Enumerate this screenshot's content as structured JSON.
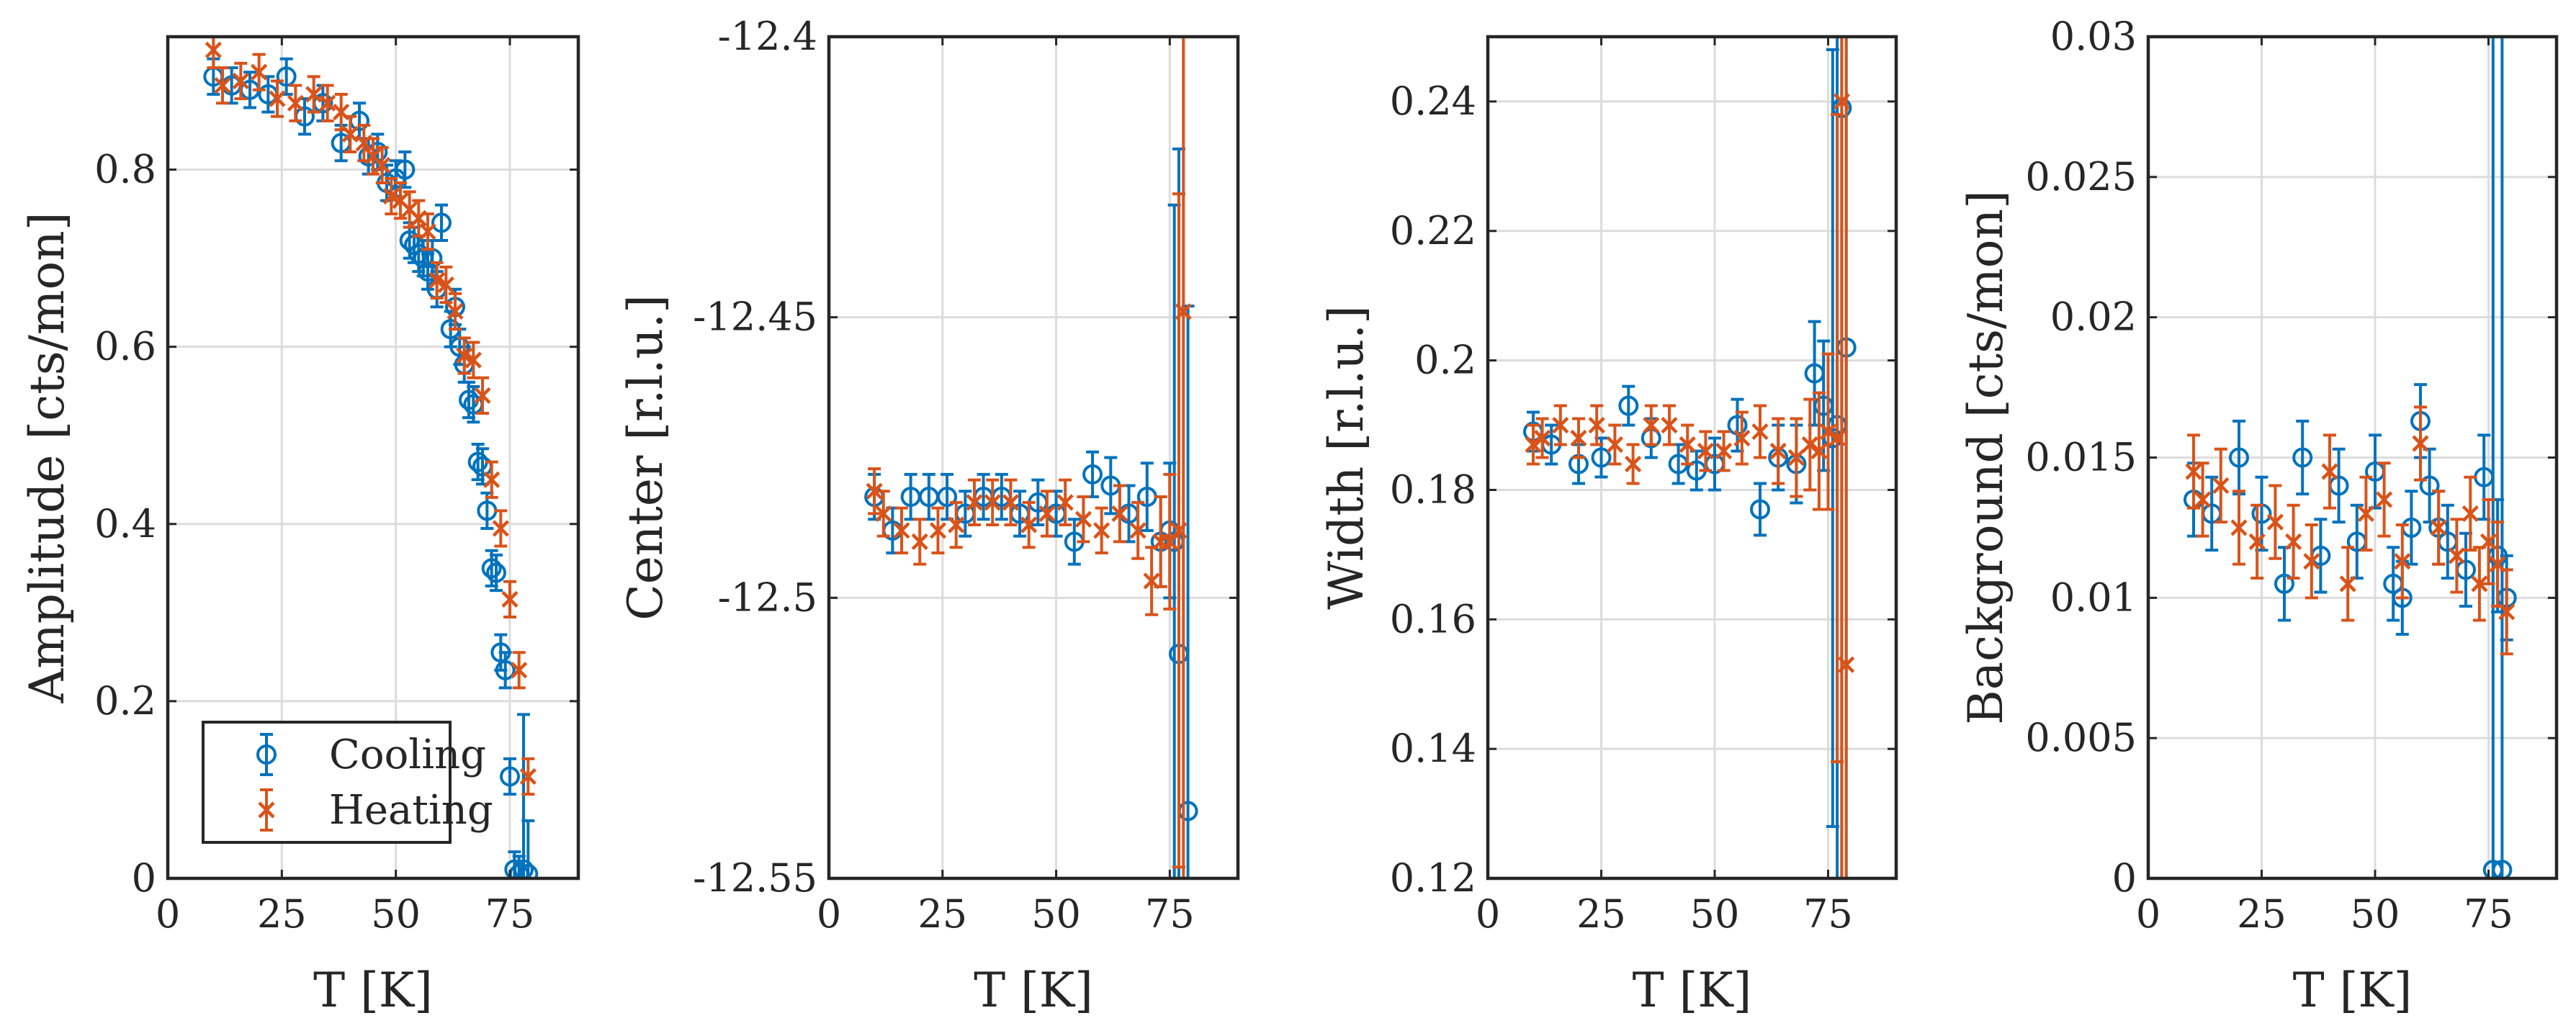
{
  "colors": {
    "cooling": "#0072BD",
    "heating": "#D95319",
    "axis": "#262626",
    "grid": "#dcdcdc"
  },
  "chart_data": [
    {
      "type": "scatter",
      "xlabel": "T [K]",
      "ylabel": "Amplitude [cts/mon]",
      "xlim": [
        0,
        90
      ],
      "ylim": [
        0,
        0.95
      ],
      "xticks": [
        0,
        25,
        50,
        75
      ],
      "xtick_labels": [
        "0",
        "25",
        "50",
        "75"
      ],
      "yticks": [
        0,
        0.2,
        0.4,
        0.6,
        0.8
      ],
      "ytick_labels": [
        "0",
        "0.2",
        "0.4",
        "0.6",
        "0.8"
      ],
      "grid": true,
      "legend": {
        "placement": "bottom-left",
        "entries": [
          "Cooling",
          "Heating"
        ]
      },
      "series": [
        {
          "name": "Cooling",
          "marker": "circle",
          "x": [
            10,
            14,
            18,
            22,
            26,
            30,
            34,
            38,
            42,
            44,
            46,
            48,
            50,
            52,
            53,
            54,
            55,
            56,
            57,
            58,
            59,
            60,
            62,
            63,
            64,
            65,
            66,
            67,
            68,
            69,
            70,
            71,
            72,
            73,
            74,
            75,
            76,
            77,
            78,
            79
          ],
          "y": [
            0.905,
            0.895,
            0.89,
            0.885,
            0.905,
            0.86,
            0.875,
            0.83,
            0.855,
            0.815,
            0.82,
            0.785,
            0.79,
            0.8,
            0.72,
            0.715,
            0.705,
            0.7,
            0.685,
            0.7,
            0.665,
            0.74,
            0.62,
            0.645,
            0.6,
            0.58,
            0.54,
            0.535,
            0.47,
            0.465,
            0.415,
            0.35,
            0.345,
            0.255,
            0.235,
            0.115,
            0.01,
            0.005,
            0.01,
            0.005
          ],
          "err": [
            0.02,
            0.02,
            0.02,
            0.02,
            0.02,
            0.02,
            0.02,
            0.02,
            0.02,
            0.02,
            0.02,
            0.02,
            0.02,
            0.02,
            0.02,
            0.02,
            0.02,
            0.02,
            0.02,
            0.02,
            0.02,
            0.02,
            0.02,
            0.02,
            0.02,
            0.02,
            0.02,
            0.02,
            0.02,
            0.02,
            0.02,
            0.02,
            0.02,
            0.02,
            0.02,
            0.02,
            0.02,
            0.02,
            0.175,
            0.06
          ]
        },
        {
          "name": "Heating",
          "marker": "x",
          "x": [
            10,
            12,
            16,
            20,
            24,
            28,
            32,
            35,
            38,
            40,
            43,
            45,
            47,
            49,
            51,
            53,
            55,
            57,
            59,
            61,
            63,
            65,
            67,
            69,
            71,
            73,
            75,
            77,
            79
          ],
          "y": [
            0.935,
            0.895,
            0.9,
            0.91,
            0.88,
            0.875,
            0.885,
            0.875,
            0.865,
            0.84,
            0.83,
            0.815,
            0.805,
            0.77,
            0.765,
            0.755,
            0.745,
            0.73,
            0.675,
            0.67,
            0.64,
            0.59,
            0.585,
            0.545,
            0.45,
            0.395,
            0.315,
            0.235,
            0.115
          ],
          "err": [
            0.02,
            0.02,
            0.02,
            0.02,
            0.02,
            0.02,
            0.02,
            0.02,
            0.02,
            0.02,
            0.02,
            0.02,
            0.02,
            0.02,
            0.02,
            0.02,
            0.02,
            0.02,
            0.02,
            0.02,
            0.02,
            0.02,
            0.02,
            0.02,
            0.02,
            0.02,
            0.02,
            0.02,
            0.02
          ]
        }
      ]
    },
    {
      "type": "scatter",
      "xlabel": "T [K]",
      "ylabel": "Center [r.l.u.]",
      "xlim": [
        0,
        90
      ],
      "ylim": [
        -12.55,
        -12.4
      ],
      "xticks": [
        0,
        25,
        50,
        75
      ],
      "xtick_labels": [
        "0",
        "25",
        "50",
        "75"
      ],
      "yticks": [
        -12.55,
        -12.5,
        -12.45,
        -12.4
      ],
      "ytick_labels": [
        "-12.55",
        "-12.5",
        "-12.45",
        "-12.4"
      ],
      "grid": true,
      "series": [
        {
          "name": "Cooling",
          "marker": "circle",
          "x": [
            10,
            14,
            18,
            22,
            26,
            30,
            34,
            38,
            42,
            46,
            50,
            54,
            58,
            62,
            66,
            70,
            73,
            75,
            76,
            77,
            79
          ],
          "y": [
            -12.482,
            -12.488,
            -12.482,
            -12.482,
            -12.482,
            -12.485,
            -12.482,
            -12.482,
            -12.485,
            -12.483,
            -12.485,
            -12.49,
            -12.478,
            -12.48,
            -12.485,
            -12.482,
            -12.49,
            -12.488,
            -12.49,
            -12.51,
            -12.538
          ],
          "err": [
            0.004,
            0.004,
            0.004,
            0.004,
            0.004,
            0.004,
            0.004,
            0.004,
            0.004,
            0.004,
            0.004,
            0.004,
            0.004,
            0.005,
            0.005,
            0.006,
            0.008,
            0.012,
            0.06,
            0.09,
            0.09
          ]
        },
        {
          "name": "Heating",
          "marker": "x",
          "x": [
            10,
            12,
            16,
            20,
            24,
            28,
            32,
            36,
            40,
            44,
            48,
            52,
            56,
            60,
            64,
            68,
            71,
            73,
            75,
            77,
            78
          ],
          "y": [
            -12.481,
            -12.485,
            -12.488,
            -12.49,
            -12.488,
            -12.487,
            -12.483,
            -12.483,
            -12.483,
            -12.487,
            -12.485,
            -12.483,
            -12.486,
            -12.488,
            -12.485,
            -12.488,
            -12.497,
            -12.49,
            -12.49,
            -12.488,
            -12.449
          ],
          "err": [
            0.004,
            0.004,
            0.004,
            0.004,
            0.004,
            0.004,
            0.004,
            0.004,
            0.004,
            0.004,
            0.004,
            0.004,
            0.004,
            0.004,
            0.005,
            0.005,
            0.006,
            0.008,
            0.012,
            0.06,
            0.2
          ]
        }
      ]
    },
    {
      "type": "scatter",
      "xlabel": "T [K]",
      "ylabel": "Width [r.l.u.]",
      "xlim": [
        0,
        90
      ],
      "ylim": [
        0.12,
        0.25
      ],
      "xticks": [
        0,
        25,
        50,
        75
      ],
      "xtick_labels": [
        "0",
        "25",
        "50",
        "75"
      ],
      "yticks": [
        0.12,
        0.14,
        0.16,
        0.18,
        0.2,
        0.22,
        0.24
      ],
      "ytick_labels": [
        "0.12",
        "0.14",
        "0.16",
        "0.18",
        "0.2",
        "0.22",
        "0.24"
      ],
      "grid": true,
      "series": [
        {
          "name": "Cooling",
          "marker": "circle",
          "x": [
            10,
            14,
            20,
            25,
            31,
            36,
            42,
            46,
            50,
            55,
            60,
            64,
            68,
            72,
            74,
            76,
            77,
            78,
            79
          ],
          "y": [
            0.189,
            0.187,
            0.184,
            0.185,
            0.193,
            0.188,
            0.184,
            0.183,
            0.184,
            0.19,
            0.177,
            0.185,
            0.184,
            0.198,
            0.193,
            0.188,
            0.19,
            0.239,
            0.202
          ],
          "err": [
            0.003,
            0.003,
            0.003,
            0.003,
            0.003,
            0.003,
            0.003,
            0.003,
            0.004,
            0.004,
            0.004,
            0.005,
            0.006,
            0.008,
            0.01,
            0.06,
            0.15,
            0.15,
            0.12
          ]
        },
        {
          "name": "Heating",
          "marker": "x",
          "x": [
            10,
            12,
            16,
            20,
            24,
            28,
            32,
            36,
            40,
            44,
            48,
            52,
            56,
            60,
            64,
            68,
            71,
            73,
            75,
            77,
            78,
            79
          ],
          "y": [
            0.187,
            0.188,
            0.19,
            0.188,
            0.19,
            0.187,
            0.184,
            0.19,
            0.19,
            0.187,
            0.186,
            0.186,
            0.188,
            0.189,
            0.186,
            0.185,
            0.187,
            0.186,
            0.189,
            0.188,
            0.24,
            0.153
          ],
          "err": [
            0.003,
            0.003,
            0.003,
            0.003,
            0.003,
            0.003,
            0.003,
            0.003,
            0.003,
            0.003,
            0.003,
            0.003,
            0.004,
            0.004,
            0.005,
            0.006,
            0.007,
            0.009,
            0.012,
            0.05,
            0.15,
            0.15
          ]
        }
      ]
    },
    {
      "type": "scatter",
      "xlabel": "T [K]",
      "ylabel": "Background [cts/mon]",
      "xlim": [
        0,
        90
      ],
      "ylim": [
        0,
        0.03
      ],
      "xticks": [
        0,
        25,
        50,
        75
      ],
      "xtick_labels": [
        "0",
        "25",
        "50",
        "75"
      ],
      "yticks": [
        0,
        0.005,
        0.01,
        0.015,
        0.02,
        0.025,
        0.03
      ],
      "ytick_labels": [
        "0",
        "0.005",
        "0.01",
        "0.015",
        "0.02",
        "0.025",
        "0.03"
      ],
      "grid": true,
      "series": [
        {
          "name": "Cooling",
          "marker": "circle",
          "x": [
            10,
            14,
            20,
            25,
            30,
            34,
            38,
            42,
            46,
            50,
            54,
            56,
            58,
            60,
            62,
            64,
            66,
            70,
            74,
            76,
            77,
            78,
            79
          ],
          "y": [
            0.0135,
            0.013,
            0.015,
            0.013,
            0.0105,
            0.015,
            0.0115,
            0.014,
            0.012,
            0.0145,
            0.0105,
            0.01,
            0.0125,
            0.0163,
            0.014,
            0.0125,
            0.012,
            0.011,
            0.0143,
            0.0003,
            0.0115,
            0.0003,
            0.01
          ],
          "err": [
            0.0013,
            0.0013,
            0.0013,
            0.0013,
            0.0013,
            0.0013,
            0.0013,
            0.0013,
            0.0013,
            0.0013,
            0.0013,
            0.0013,
            0.0013,
            0.0013,
            0.0013,
            0.0013,
            0.0013,
            0.0013,
            0.0015,
            0.03,
            0.002,
            0.03,
            0.0015
          ]
        },
        {
          "name": "Heating",
          "marker": "x",
          "x": [
            10,
            12,
            16,
            20,
            24,
            28,
            32,
            36,
            40,
            44,
            48,
            52,
            56,
            60,
            64,
            68,
            71,
            73,
            75,
            77,
            79
          ],
          "y": [
            0.0145,
            0.0135,
            0.014,
            0.0125,
            0.012,
            0.0127,
            0.012,
            0.0113,
            0.0145,
            0.0105,
            0.013,
            0.0135,
            0.0113,
            0.0155,
            0.0125,
            0.0115,
            0.013,
            0.0105,
            0.012,
            0.0112,
            0.0095
          ],
          "err": [
            0.0013,
            0.0013,
            0.0013,
            0.0013,
            0.0013,
            0.0013,
            0.0013,
            0.0013,
            0.0013,
            0.0013,
            0.0013,
            0.0013,
            0.0013,
            0.0013,
            0.0013,
            0.0013,
            0.0013,
            0.0013,
            0.0015,
            0.0015,
            0.0015
          ]
        }
      ]
    }
  ]
}
